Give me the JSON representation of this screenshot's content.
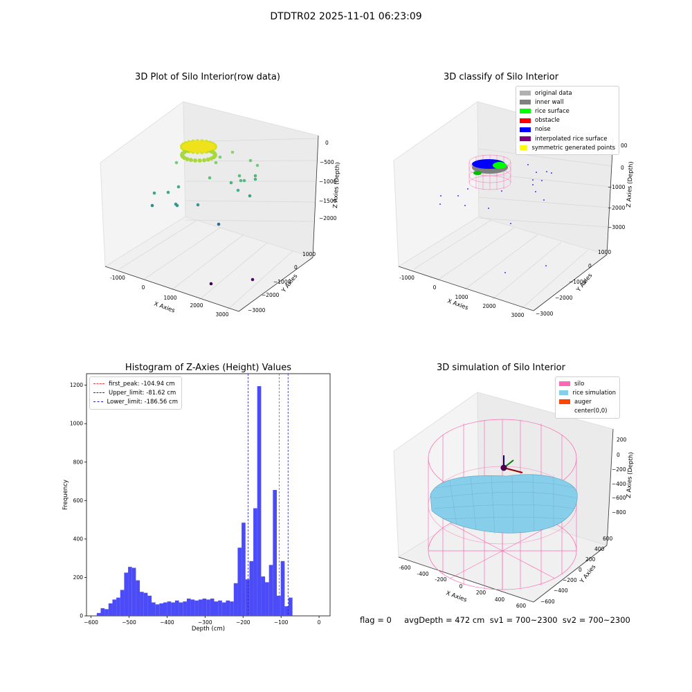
{
  "suptitle": "DTDTR02 2025-11-01 06:23:09",
  "footer": "flag = 0     avgDepth = 472 cm  sv1 = 700~2300  sv2 = 700~2300",
  "colors": {
    "bar": "#4B4BF8",
    "peak_line": "#e03c3c",
    "limit_line": "#2020c0",
    "silo": "#ff69b4",
    "rice": "#87ceeb",
    "auger": "#ff4500"
  },
  "panels": {
    "raw": {
      "title": "3D Plot of Silo Interior(row data)",
      "xlabel": "X Axies",
      "ylabel": "Y Axies",
      "zlabel": "Z Axies (Depth)",
      "xticks": [
        "-1000",
        "0",
        "1000",
        "2000",
        "3000"
      ],
      "yticks": [
        "1000",
        "0",
        "−1000",
        "−2000",
        "−3000"
      ],
      "zticks": [
        "0",
        "−500",
        "−1000",
        "−1500",
        "−2000"
      ]
    },
    "classify": {
      "title": "3D classify of Silo Interior",
      "xlabel": "X Axies",
      "ylabel": "Y Axies",
      "zlabel": "Z Axies (Depth)",
      "xticks": [
        "-1000",
        "0",
        "1000",
        "2000",
        "3000"
      ],
      "yticks": [
        "1000",
        "0",
        "−1000",
        "−2000",
        "−3000"
      ],
      "zticks": [
        "0",
        "−1000",
        "−2000",
        "−3000"
      ],
      "ztick_partial": "00",
      "legend": [
        {
          "label": "original data",
          "color": "#b0b0b0"
        },
        {
          "label": "inner wall",
          "color": "#808080"
        },
        {
          "label": "rice surface",
          "color": "#00ff00"
        },
        {
          "label": "obstacle",
          "color": "#ff0000"
        },
        {
          "label": "noise",
          "color": "#0000ff"
        },
        {
          "label": "interpolated rice surface",
          "color": "#800080"
        },
        {
          "label": "symmetric generated points",
          "color": "#ffff00"
        }
      ]
    },
    "simulation": {
      "title": "3D simulation of Silo Interior",
      "xlabel": "X Axies",
      "ylabel": "Y Axies",
      "zlabel": "Z Axies (Depth)",
      "xticks": [
        "-600",
        "-400",
        "-200",
        "0",
        "200",
        "400",
        "600"
      ],
      "yticks": [
        "600",
        "400",
        "200",
        "0",
        "−200",
        "−400",
        "−600"
      ],
      "zticks": [
        "200",
        "0",
        "−200",
        "−400",
        "−600",
        "−800"
      ],
      "legend": [
        {
          "label": "silo",
          "color": "#ff69b4"
        },
        {
          "label": "rice simulation",
          "color": "#87ceeb"
        },
        {
          "label": "auger",
          "color": "#ff4500"
        },
        {
          "label": "center(0,0)",
          "color": "transparent"
        }
      ]
    }
  },
  "chart_data": [
    {
      "type": "bar",
      "title": "Histogram of Z-Axies (Height) Values",
      "xlabel": "Depth (cm)",
      "ylabel": "Frequency",
      "xlim": [
        -612,
        29
      ],
      "ylim": [
        0,
        1260
      ],
      "xticks": [
        -600,
        -500,
        -400,
        -300,
        -200,
        -100,
        0
      ],
      "yticks": [
        0,
        200,
        400,
        600,
        800,
        1000,
        1200
      ],
      "bin_start": -585,
      "bin_width": 10.3,
      "values": [
        15,
        40,
        35,
        65,
        85,
        95,
        135,
        225,
        255,
        250,
        185,
        125,
        120,
        105,
        70,
        60,
        65,
        70,
        75,
        70,
        80,
        70,
        75,
        90,
        85,
        80,
        85,
        90,
        85,
        90,
        75,
        80,
        70,
        80,
        75,
        170,
        355,
        485,
        190,
        285,
        560,
        1195,
        205,
        175,
        265,
        655,
        105,
        285,
        50,
        95
      ],
      "vlines": [
        {
          "label": "first_peak: -104.94 cm",
          "x": -104.94,
          "color": "#e03c3c"
        },
        {
          "label": "Upper_limit: -81.62 cm",
          "x": -81.62,
          "color": "#2020c0"
        },
        {
          "label": "Lower_limit: -186.56 cm",
          "x": -186.56,
          "color": "#2020c0"
        }
      ],
      "grid": false,
      "legend_position": "top-left"
    }
  ]
}
